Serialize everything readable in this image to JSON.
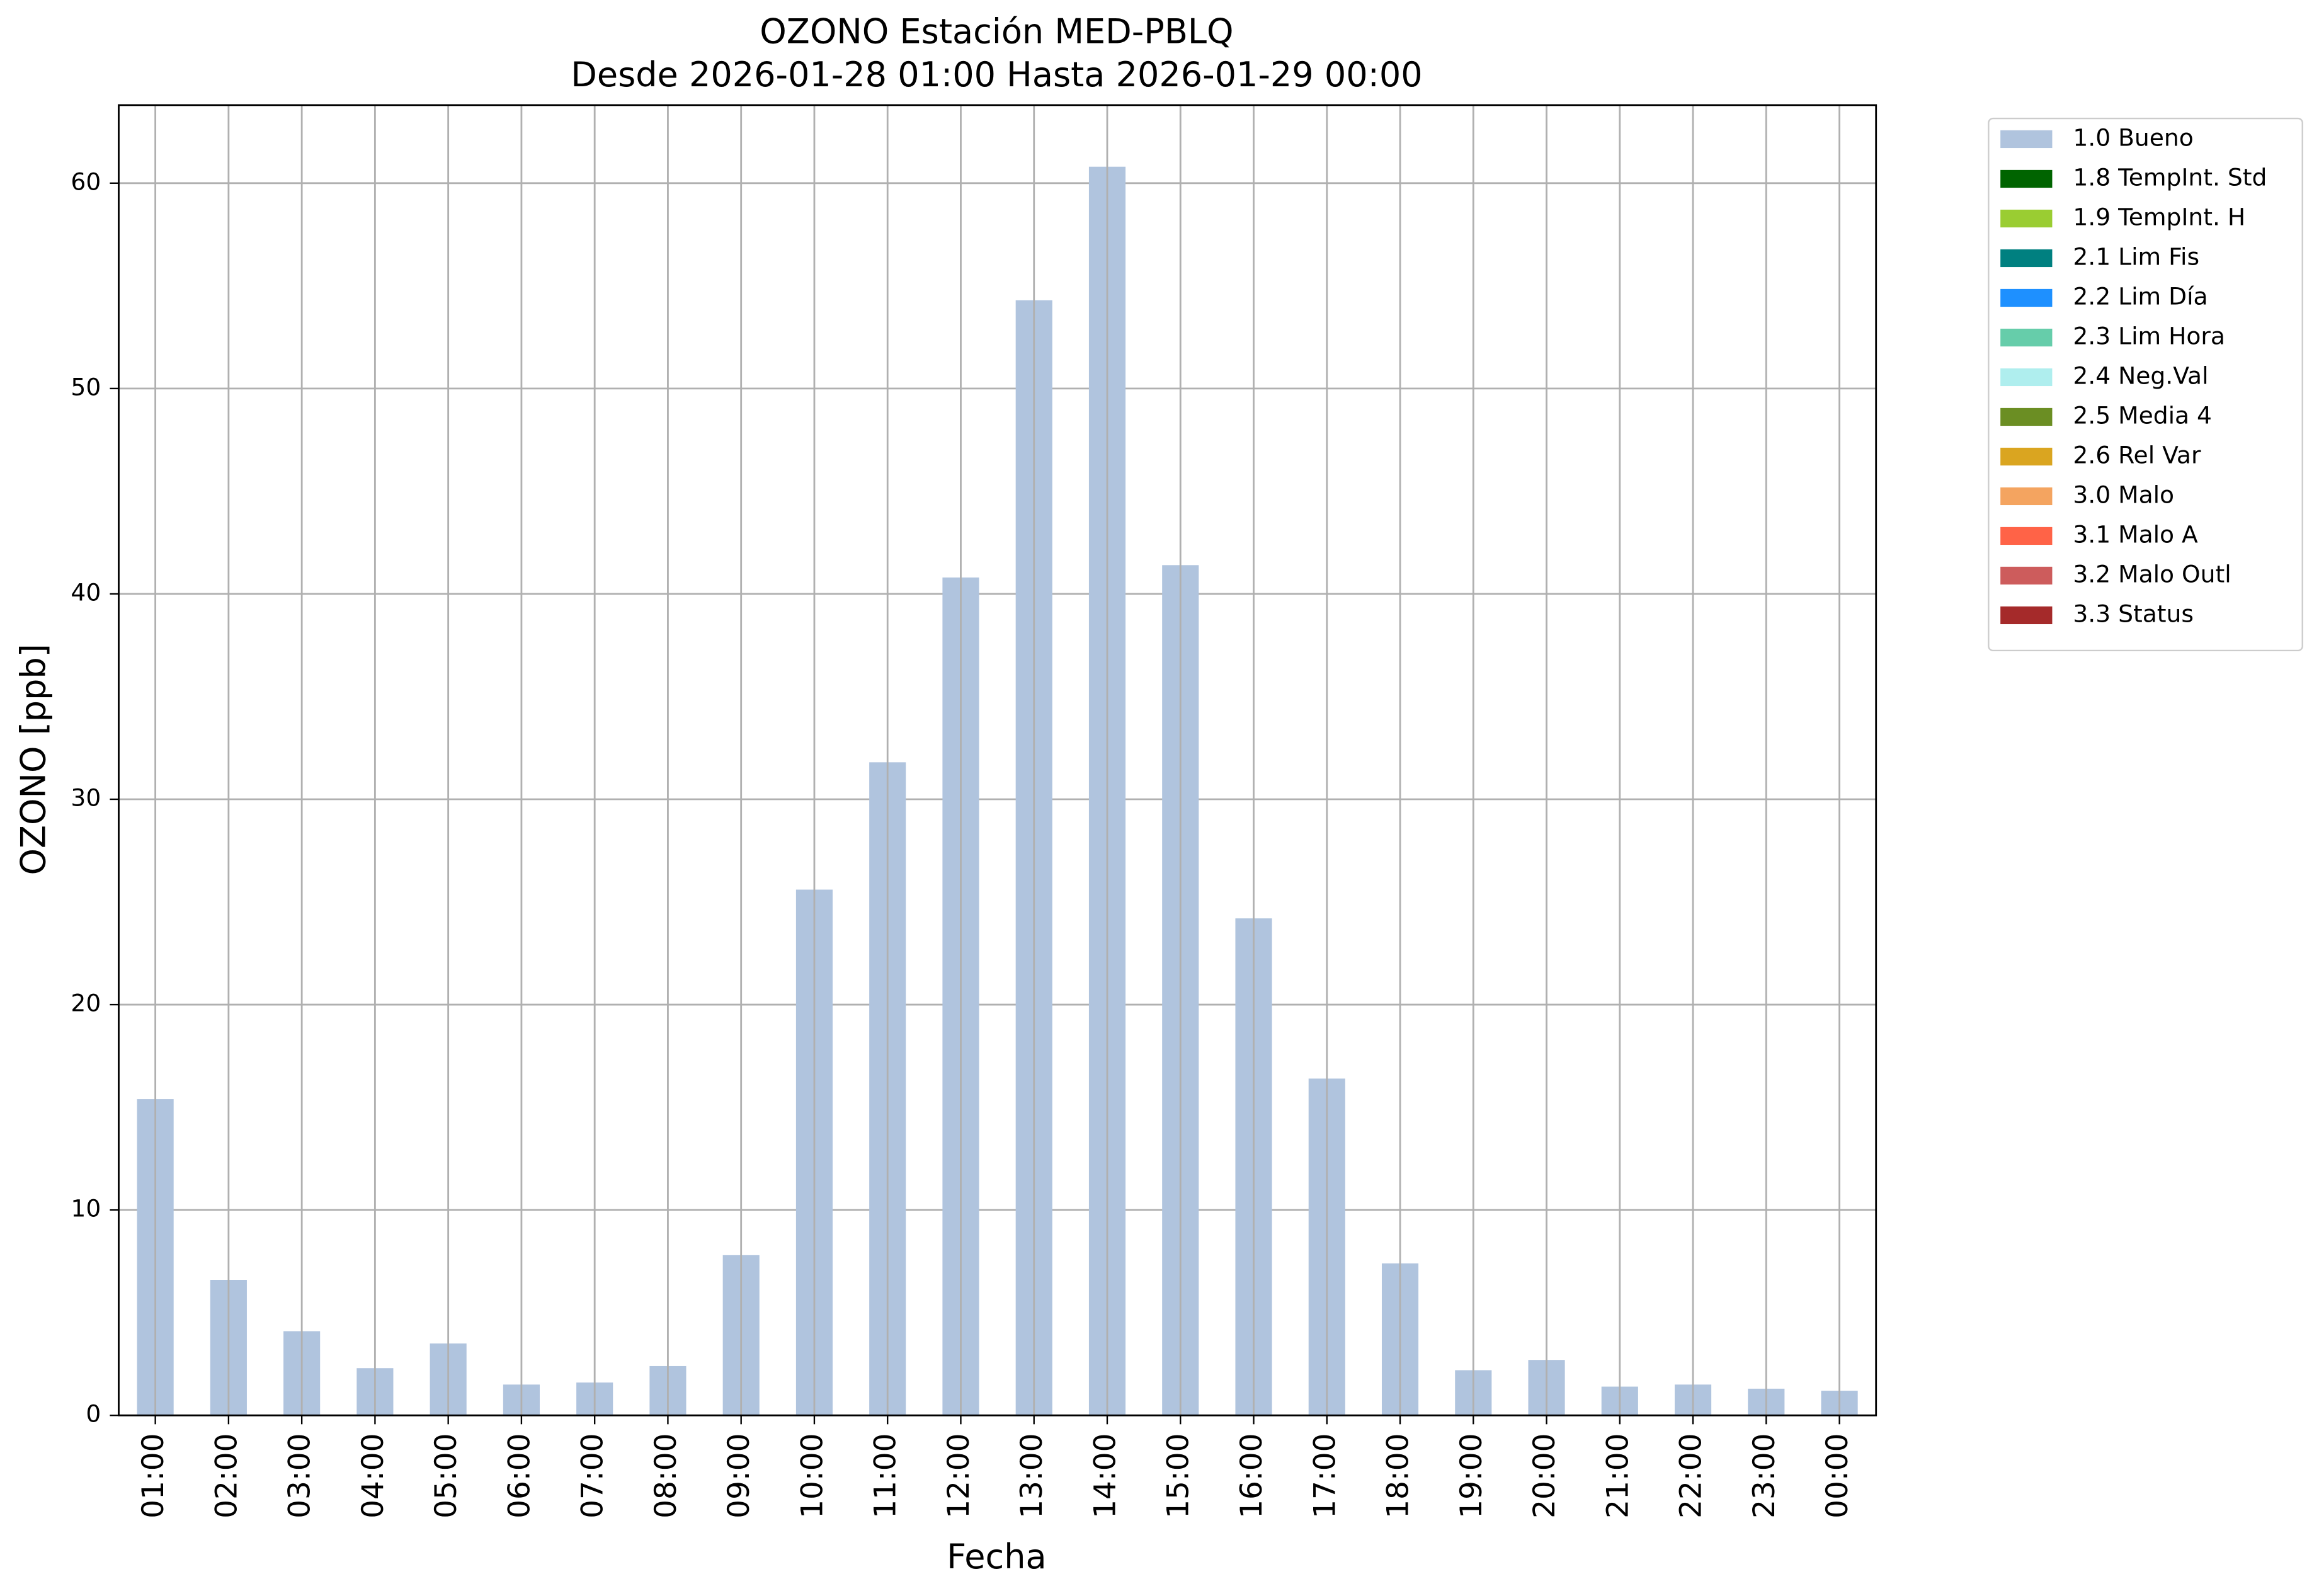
{
  "chart_data": {
    "type": "bar",
    "title": "OZONO Estación MED-PBLQ",
    "subtitle": "Desde 2026-01-28 01:00 Hasta 2026-01-29 00:00",
    "x_label": "Fecha",
    "y_label": "OZONO [ppb]",
    "categories": [
      "01:00",
      "02:00",
      "03:00",
      "04:00",
      "05:00",
      "06:00",
      "07:00",
      "08:00",
      "09:00",
      "10:00",
      "11:00",
      "12:00",
      "13:00",
      "14:00",
      "15:00",
      "16:00",
      "17:00",
      "18:00",
      "19:00",
      "20:00",
      "21:00",
      "22:00",
      "23:00",
      "00:00"
    ],
    "series": [
      {
        "name": "1.0 Bueno",
        "color": "#b0c4de",
        "values": [
          15.4,
          6.6,
          4.1,
          2.3,
          3.5,
          1.5,
          1.6,
          2.4,
          7.8,
          25.6,
          31.8,
          40.8,
          54.3,
          60.8,
          41.4,
          24.2,
          16.4,
          7.4,
          2.2,
          2.7,
          1.4,
          1.5,
          1.3,
          1.2
        ]
      },
      {
        "name": "1.8 TempInt. Std",
        "color": "#006400"
      },
      {
        "name": "1.9 TempInt. H",
        "color": "#9acd32"
      },
      {
        "name": "2.1 Lim Fis",
        "color": "#008080"
      },
      {
        "name": "2.2 Lim Día",
        "color": "#1e90ff"
      },
      {
        "name": "2.3 Lim Hora",
        "color": "#66cdaa"
      },
      {
        "name": "2.4 Neg.Val",
        "color": "#afeeee"
      },
      {
        "name": "2.5 Media 4",
        "color": "#6b8e23"
      },
      {
        "name": "2.6 Rel Var",
        "color": "#daa520"
      },
      {
        "name": "3.0 Malo",
        "color": "#f4a460"
      },
      {
        "name": "3.1 Malo A",
        "color": "#ff6347"
      },
      {
        "name": "3.2 Malo Outl",
        "color": "#cd5c5c"
      },
      {
        "name": "3.3 Status",
        "color": "#a52a2a"
      }
    ],
    "ylim": [
      0,
      63.8
    ],
    "yticks": [
      0,
      10,
      20,
      30,
      40,
      50,
      60
    ],
    "grid": true,
    "legend": "outside-upper-right"
  }
}
